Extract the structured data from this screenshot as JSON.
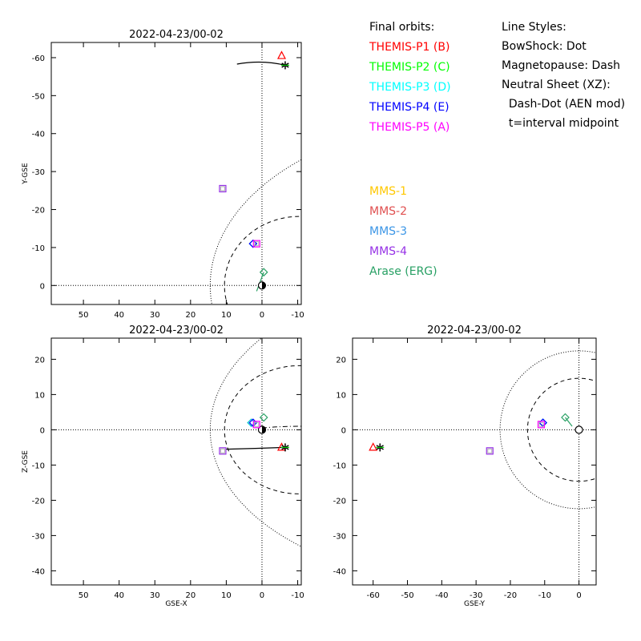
{
  "panels": [
    {
      "title": "2022-04-23/00-02",
      "xlabel": "",
      "ylabel": "Y-GSE",
      "xticks": [
        "50",
        "40",
        "30",
        "20",
        "10",
        "0",
        "-10"
      ],
      "yticks": [
        "-60",
        "-50",
        "-40",
        "-30",
        "-20",
        "-10",
        "0"
      ],
      "xlim": [
        59,
        -11
      ],
      "ylim": [
        -64,
        5
      ]
    },
    {
      "title": "2022-04-23/00-02",
      "xlabel": "GSE-X",
      "ylabel": "Z-GSE",
      "xticks": [
        "50",
        "40",
        "30",
        "20",
        "10",
        "0",
        "-10"
      ],
      "yticks": [
        "20",
        "10",
        "0",
        "-10",
        "-20",
        "-30",
        "-40"
      ],
      "xlim": [
        59,
        -11
      ],
      "ylim": [
        26,
        -44
      ]
    },
    {
      "title": "2022-04-23/00-02",
      "xlabel": "GSE-Y",
      "ylabel": "",
      "xticks": [
        "-60",
        "-50",
        "-40",
        "-30",
        "-20",
        "-10",
        "0"
      ],
      "yticks": [
        "20",
        "10",
        "0",
        "-10",
        "-20",
        "-30",
        "-40"
      ],
      "xlim": [
        -66,
        5
      ],
      "ylim": [
        26,
        -44
      ]
    }
  ],
  "legend": {
    "orbits_title": "Final orbits:",
    "orbits": [
      {
        "label": "THEMIS-P1 (B)",
        "color": "#ff0000"
      },
      {
        "label": "THEMIS-P2 (C)",
        "color": "#00ff00"
      },
      {
        "label": "THEMIS-P3 (D)",
        "color": "#00ffff"
      },
      {
        "label": "THEMIS-P4 (E)",
        "color": "#0000ff"
      },
      {
        "label": "THEMIS-P5 (A)",
        "color": "#ff00ff"
      }
    ],
    "mms": [
      {
        "label": "MMS-1",
        "color": "#ffc800"
      },
      {
        "label": "MMS-2",
        "color": "#e05050"
      },
      {
        "label": "MMS-3",
        "color": "#3c96e6"
      },
      {
        "label": "MMS-4",
        "color": "#9632e6"
      },
      {
        "label": "Arase (ERG)",
        "color": "#28a064"
      }
    ],
    "styles_title": "Line Styles:",
    "styles": [
      "BowShock: Dot",
      "Magnetopause: Dash",
      "Neutral Sheet (XZ):",
      "  Dash-Dot (AEN mod)",
      "  t=interval midpoint"
    ]
  },
  "chart_data": [
    {
      "type": "scatter",
      "title": "2022-04-23/00-02",
      "xlabel": "",
      "ylabel": "Y-GSE",
      "xlim": [
        59,
        -11
      ],
      "ylim": [
        -64,
        5
      ],
      "boundaries": {
        "bow_shock": "dotted",
        "magnetopause": "dashed"
      },
      "series": [
        {
          "name": "THEMIS-P1 (B)",
          "points": [
            [
              -5.5,
              -60.5
            ]
          ],
          "marker": "triangle"
        },
        {
          "name": "THEMIS-P2 (C)",
          "points": [
            [
              -6.5,
              -58.0
            ]
          ],
          "marker": "asterisk"
        },
        {
          "name": "THEMIS-P3 (D)",
          "points": [
            [
              2.5,
              -11.0
            ]
          ],
          "marker": "diamond"
        },
        {
          "name": "THEMIS-P4 (E)",
          "points": [
            [
              2.5,
              -11.0
            ]
          ],
          "marker": "diamond"
        },
        {
          "name": "THEMIS-P5 (A)",
          "points": [
            [
              1.5,
              -11.0
            ]
          ],
          "marker": "square"
        },
        {
          "name": "MMS-4",
          "points": [
            [
              11.0,
              -25.5
            ]
          ],
          "marker": "square"
        },
        {
          "name": "Arase (ERG)",
          "points": [
            [
              -0.5,
              -3.5
            ]
          ],
          "marker": "diamond"
        }
      ]
    },
    {
      "type": "scatter",
      "title": "2022-04-23/00-02",
      "xlabel": "GSE-X",
      "ylabel": "Z-GSE",
      "xlim": [
        59,
        -11
      ],
      "ylim": [
        26,
        -44
      ],
      "boundaries": {
        "bow_shock": "dotted",
        "magnetopause": "dashed"
      },
      "series": [
        {
          "name": "THEMIS-P1 (B)",
          "points": [
            [
              -5.5,
              -5.0
            ]
          ],
          "marker": "triangle"
        },
        {
          "name": "THEMIS-P2 (C)",
          "points": [
            [
              -6.5,
              -5.0
            ]
          ],
          "marker": "asterisk"
        },
        {
          "name": "THEMIS-P3 (D)",
          "points": [
            [
              3.0,
              2.0
            ]
          ],
          "marker": "diamond"
        },
        {
          "name": "THEMIS-P4 (E)",
          "points": [
            [
              2.5,
              2.0
            ]
          ],
          "marker": "diamond"
        },
        {
          "name": "THEMIS-P5 (A)",
          "points": [
            [
              1.5,
              1.5
            ]
          ],
          "marker": "square"
        },
        {
          "name": "MMS-4",
          "points": [
            [
              11.0,
              -6.0
            ]
          ],
          "marker": "square"
        },
        {
          "name": "Arase (ERG)",
          "points": [
            [
              -0.5,
              3.5
            ]
          ],
          "marker": "diamond"
        }
      ]
    },
    {
      "type": "scatter",
      "title": "2022-04-23/00-02",
      "xlabel": "GSE-Y",
      "ylabel": "",
      "xlim": [
        -66,
        5
      ],
      "ylim": [
        26,
        -44
      ],
      "boundaries": {
        "bow_shock": "dotted",
        "magnetopause": "dashed"
      },
      "series": [
        {
          "name": "THEMIS-P1 (B)",
          "points": [
            [
              -60.0,
              -5.0
            ]
          ],
          "marker": "triangle"
        },
        {
          "name": "THEMIS-P2 (C)",
          "points": [
            [
              -58.0,
              -5.0
            ]
          ],
          "marker": "asterisk"
        },
        {
          "name": "THEMIS-P3 (D)",
          "points": [
            [
              -10.5,
              2.0
            ]
          ],
          "marker": "diamond"
        },
        {
          "name": "THEMIS-P4 (E)",
          "points": [
            [
              -10.5,
              2.0
            ]
          ],
          "marker": "diamond"
        },
        {
          "name": "THEMIS-P5 (A)",
          "points": [
            [
              -11.0,
              1.5
            ]
          ],
          "marker": "square"
        },
        {
          "name": "MMS-4",
          "points": [
            [
              -26.0,
              -6.0
            ]
          ],
          "marker": "square"
        },
        {
          "name": "Arase (ERG)",
          "points": [
            [
              -4.0,
              3.5
            ]
          ],
          "marker": "diamond"
        }
      ]
    }
  ]
}
